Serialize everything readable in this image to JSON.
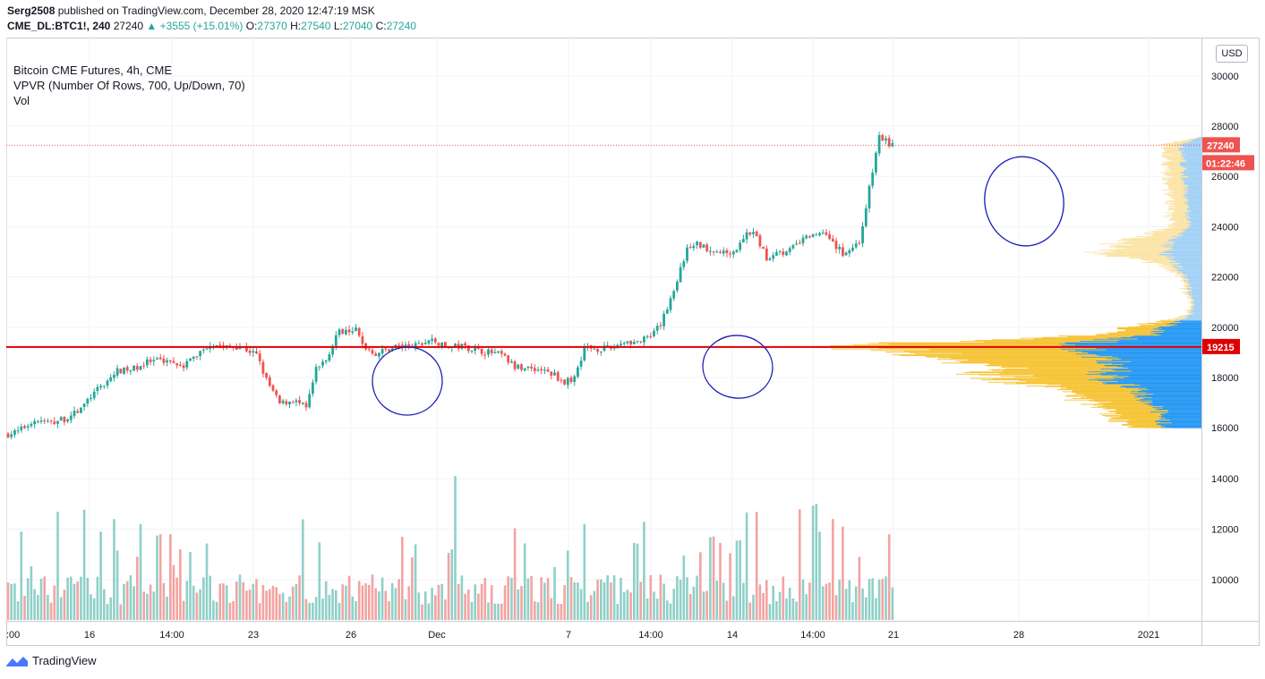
{
  "header": {
    "author": "Serg2508",
    "published_text": "published on TradingView.com, December 28, 2020 12:47:19 MSK",
    "symbol": "CME_DL:BTC1!, 240",
    "last": "27240",
    "change": "▲ +3555 (+15.01%)",
    "o_label": "O:",
    "o_val": "27370",
    "h_label": "H:",
    "h_val": "27540",
    "l_label": "L:",
    "l_val": "27040",
    "c_label": "C:",
    "c_val": "27240"
  },
  "legend": {
    "title": "Bitcoin CME Futures, 4h, CME",
    "indicator": "VPVR (Number Of Rows, 700, Up/Down, 70)",
    "volume": "Vol"
  },
  "currency_button": "USD",
  "footer": {
    "brand": "TradingView"
  },
  "colors": {
    "up": "#26a69a",
    "down": "#ef5350",
    "vol_up": "#8fd0c8",
    "vol_down": "#f2a4a2",
    "vpvr_up_strong": "#2196f3",
    "vpvr_up_light": "#9fd0f5",
    "vpvr_down_strong": "#f6c231",
    "vpvr_down_light": "#fbe3a4",
    "level_line": "#e00000",
    "annotation": "#1a1ab8"
  },
  "chart_data": {
    "type": "candlestick",
    "title": "Bitcoin CME Futures, 4h, CME",
    "y_axis": {
      "ticks": [
        16000,
        18000,
        20000,
        22000,
        24000,
        26000,
        28000,
        30000
      ],
      "range": [
        15000,
        30500
      ]
    },
    "volume_axis": {
      "ticks": [
        10000,
        12000,
        14000
      ],
      "range": [
        8500,
        15000
      ]
    },
    "x_ticks": [
      ":00",
      "16",
      "14:00",
      "23",
      "26",
      "Dec",
      "7",
      "14:00",
      "14",
      "14:00",
      "21",
      "28",
      "2021"
    ],
    "last_price": {
      "value": 27240,
      "label": "27240",
      "countdown": "01:22:46"
    },
    "horizontal_line": {
      "value": 19215,
      "label": "19215"
    },
    "anchors": [
      [
        0,
        15750
      ],
      [
        3,
        15850
      ],
      [
        8,
        16300
      ],
      [
        13,
        16200
      ],
      [
        18,
        16400
      ],
      [
        22,
        16750
      ],
      [
        25,
        17250
      ],
      [
        29,
        17750
      ],
      [
        33,
        18250
      ],
      [
        37,
        18300
      ],
      [
        42,
        18600
      ],
      [
        48,
        18700
      ],
      [
        53,
        18500
      ],
      [
        57,
        18900
      ],
      [
        61,
        19350
      ],
      [
        66,
        19200
      ],
      [
        70,
        19250
      ],
      [
        75,
        18900
      ],
      [
        78,
        17900
      ],
      [
        82,
        16950
      ],
      [
        86,
        17100
      ],
      [
        90,
        16800
      ],
      [
        93,
        18300
      ],
      [
        96,
        18700
      ],
      [
        99,
        19700
      ],
      [
        102,
        19950
      ],
      [
        105,
        19900
      ],
      [
        107,
        19300
      ],
      [
        111,
        18950
      ],
      [
        117,
        19250
      ],
      [
        123,
        19250
      ],
      [
        128,
        19500
      ],
      [
        132,
        19200
      ],
      [
        137,
        19250
      ],
      [
        143,
        19050
      ],
      [
        149,
        18900
      ],
      [
        153,
        18400
      ],
      [
        157,
        18400
      ],
      [
        161,
        18300
      ],
      [
        165,
        18100
      ],
      [
        168,
        17800
      ],
      [
        171,
        18000
      ],
      [
        174,
        19200
      ],
      [
        178,
        19150
      ],
      [
        182,
        19150
      ],
      [
        186,
        19450
      ],
      [
        190,
        19400
      ],
      [
        194,
        19600
      ],
      [
        197,
        20100
      ],
      [
        201,
        21500
      ],
      [
        205,
        23100
      ],
      [
        208,
        23300
      ],
      [
        212,
        23100
      ],
      [
        216,
        22950
      ],
      [
        220,
        23100
      ],
      [
        223,
        23800
      ],
      [
        226,
        23600
      ],
      [
        229,
        22700
      ],
      [
        232,
        23050
      ],
      [
        235,
        22950
      ],
      [
        239,
        23400
      ],
      [
        243,
        23700
      ],
      [
        247,
        23800
      ],
      [
        250,
        23200
      ],
      [
        252,
        22950
      ],
      [
        255,
        23200
      ],
      [
        257,
        23400
      ],
      [
        263,
        27600
      ],
      [
        266,
        27300
      ],
      [
        267,
        27240
      ]
    ],
    "volume_profile_rows": [
      {
        "price": 16000,
        "up": 40,
        "down": 30
      },
      {
        "price": 16500,
        "up": 45,
        "down": 55
      },
      {
        "price": 17000,
        "up": 55,
        "down": 60
      },
      {
        "price": 17500,
        "up": 70,
        "down": 80
      },
      {
        "price": 18000,
        "up": 110,
        "down": 120
      },
      {
        "price": 18500,
        "up": 95,
        "down": 150
      },
      {
        "price": 19000,
        "up": 120,
        "down": 190
      },
      {
        "price": 19250,
        "up": 160,
        "down": 250
      },
      {
        "price": 19700,
        "up": 60,
        "down": 60
      },
      {
        "price": 20500,
        "up": 12,
        "down": 4
      },
      {
        "price": 21000,
        "up": 10,
        "down": 3
      },
      {
        "price": 21500,
        "up": 14,
        "down": 5
      },
      {
        "price": 22000,
        "up": 18,
        "down": 5
      },
      {
        "price": 22500,
        "up": 28,
        "down": 14
      },
      {
        "price": 23000,
        "up": 40,
        "down": 75
      },
      {
        "price": 23500,
        "up": 35,
        "down": 50
      },
      {
        "price": 24000,
        "up": 14,
        "down": 20
      },
      {
        "price": 27300,
        "up": 22,
        "down": 18
      }
    ]
  }
}
